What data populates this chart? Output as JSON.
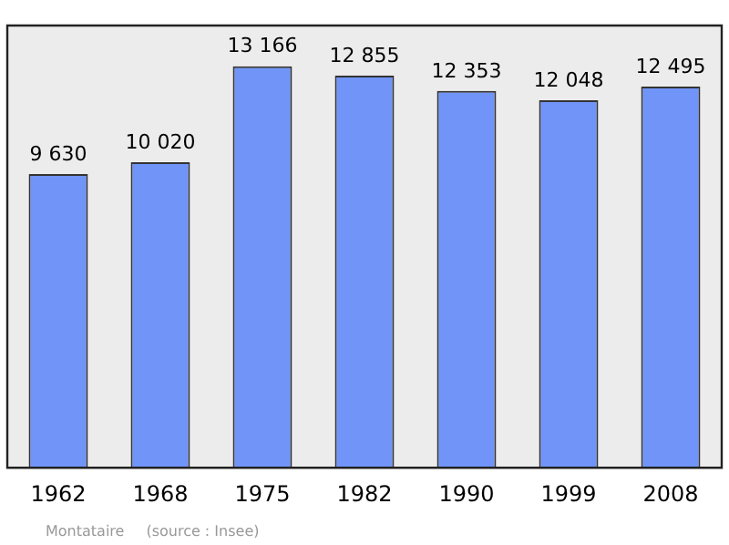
{
  "chart_data": {
    "type": "bar",
    "categories": [
      "1962",
      "1968",
      "1975",
      "1982",
      "1990",
      "1999",
      "2008"
    ],
    "values": [
      9630,
      10020,
      13166,
      12855,
      12353,
      12048,
      12495
    ],
    "value_labels": [
      "9 630",
      "10 020",
      "13 166",
      "12 855",
      "12 353",
      "12 048",
      "12 495"
    ],
    "color": "#7094f8",
    "ylim": [
      0,
      14500
    ],
    "tick_labels": "x",
    "grid": false,
    "legend": false,
    "annotations": [
      "Montataire",
      "(source : Insee)"
    ]
  }
}
